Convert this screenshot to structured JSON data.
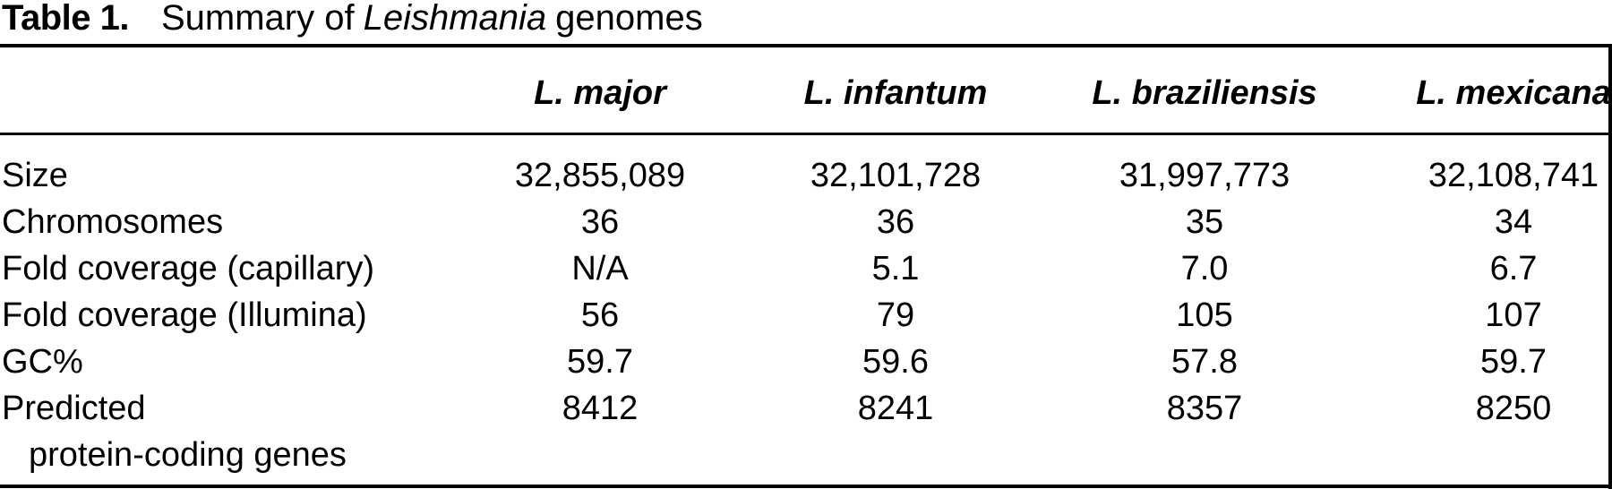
{
  "title": {
    "number_label": "Table 1.",
    "text_prefix": "Summary of",
    "italic_term": "Leishmania",
    "text_suffix": "genomes"
  },
  "table": {
    "columns": [
      "L. major",
      "L. infantum",
      "L. braziliensis",
      "L. mexicana"
    ],
    "rows": [
      {
        "label": "Size",
        "values": [
          "32,855,089",
          "32,101,728",
          "31,997,773",
          "32,108,741"
        ]
      },
      {
        "label": "Chromosomes",
        "values": [
          "36",
          "36",
          "35",
          "34"
        ]
      },
      {
        "label": "Fold coverage (capillary)",
        "values": [
          "N/A",
          "5.1",
          "7.0",
          "6.7"
        ]
      },
      {
        "label": "Fold coverage (Illumina)",
        "values": [
          "56",
          "79",
          "105",
          "107"
        ]
      },
      {
        "label": "GC%",
        "values": [
          "59.7",
          "59.6",
          "57.8",
          "59.7"
        ]
      },
      {
        "label": "Predicted",
        "label_cont": "protein-coding genes",
        "values": [
          "8412",
          "8241",
          "8357",
          "8250"
        ]
      }
    ]
  },
  "colors": {
    "text": "#000000",
    "rule": "#000000",
    "background": "#ffffff"
  },
  "chart_data": {
    "type": "table",
    "title": "Table 1. Summary of Leishmania genomes",
    "columns": [
      "",
      "L. major",
      "L. infantum",
      "L. braziliensis",
      "L. mexicana"
    ],
    "rows": [
      [
        "Size",
        "32,855,089",
        "32,101,728",
        "31,997,773",
        "32,108,741"
      ],
      [
        "Chromosomes",
        "36",
        "36",
        "35",
        "34"
      ],
      [
        "Fold coverage (capillary)",
        "N/A",
        "5.1",
        "7.0",
        "6.7"
      ],
      [
        "Fold coverage (Illumina)",
        "56",
        "79",
        "105",
        "107"
      ],
      [
        "GC%",
        "59.7",
        "59.6",
        "57.8",
        "59.7"
      ],
      [
        "Predicted protein-coding genes",
        "8412",
        "8241",
        "8357",
        "8250"
      ]
    ]
  }
}
